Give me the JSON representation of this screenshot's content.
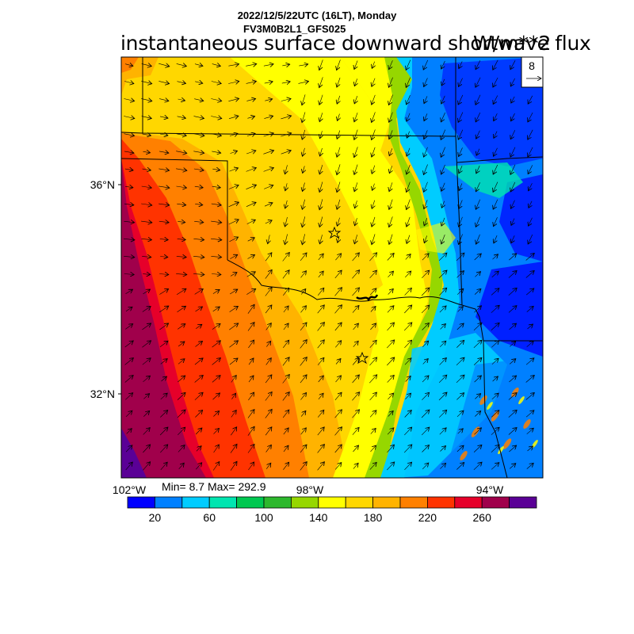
{
  "header": {
    "date_line": "2022/12/5/22UTC (16LT), Monday",
    "model_line": "FV3M0B2L1_GFS025",
    "title": "instantaneous surface downward shortwave flux",
    "units": "W/m**2"
  },
  "map": {
    "lat_labels": [
      "36°N",
      "32°N"
    ],
    "lon_labels": [
      "102°W",
      "98°W",
      "94°W"
    ],
    "vector_ref": "8"
  },
  "stats": {
    "text": "Min= 8.7 Max= 292.9",
    "min": 8.7,
    "max": 292.9
  },
  "colorbar": {
    "colors": [
      "#0000ff",
      "#0080ff",
      "#00ccff",
      "#00e5b0",
      "#00c850",
      "#2db82d",
      "#96d700",
      "#ffff00",
      "#ffd700",
      "#ffb300",
      "#ff8000",
      "#ff3300",
      "#e6002a",
      "#a0004b",
      "#5a0096"
    ],
    "tick_labels": [
      "20",
      "60",
      "100",
      "140",
      "180",
      "220",
      "260"
    ]
  }
}
